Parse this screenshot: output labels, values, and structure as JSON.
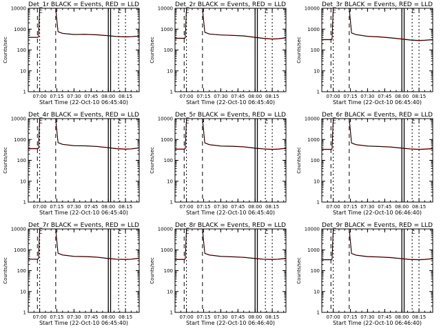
{
  "colors": {
    "background": "#ffffff",
    "axes": "#000000",
    "bkg_series": "#000000",
    "events_series": "#ff0000"
  },
  "chart_data": [
    {
      "type": "line",
      "title": "Det_1r BLACK = Events, RED = LLD",
      "xlabel": "Start Time (22-Oct-10 06:45:40)",
      "ylabel": "Counts/sec",
      "xlim": [
        "06:50",
        "08:27"
      ],
      "ylim": [
        1,
        10000
      ],
      "y_scale": "log",
      "x_ticks": [
        "07:00",
        "07:15",
        "07:30",
        "07:45",
        "08:00",
        "08:15"
      ],
      "y_ticks": [
        "1",
        "10",
        "100",
        "1000",
        "10000"
      ],
      "series": [
        {
          "name": "BLACK = Events",
          "color": "#000000",
          "x": [
            "06:50",
            "06:58",
            "06:59",
            "07:00",
            "07:14",
            "07:16",
            "07:20",
            "07:30",
            "07:40",
            "07:50",
            "08:00",
            "08:07",
            "08:15",
            "08:20",
            "08:27"
          ],
          "y": [
            400,
            400,
            420,
            10000,
            10000,
            750,
            620,
            550,
            560,
            530,
            480,
            440,
            420,
            430,
            460
          ]
        },
        {
          "name": "RED = LLD",
          "color": "#ff0000",
          "x": [
            "06:50",
            "06:58",
            "06:59",
            "07:00",
            "07:14",
            "07:16",
            "07:20",
            "07:30",
            "07:40",
            "07:50",
            "08:00",
            "08:07",
            "08:15",
            "08:20",
            "08:27"
          ],
          "y": [
            410,
            410,
            430,
            10000,
            10000,
            760,
            630,
            560,
            570,
            540,
            490,
            450,
            430,
            440,
            470
          ]
        }
      ],
      "markers": {
        "letters": [
          "C",
          "C"
        ]
      }
    },
    {
      "type": "line",
      "title": "Det_2r BLACK = Events, RED = LLD",
      "xlabel": "Start Time (22-Oct-10 06:45:40)",
      "ylabel": "Counts/sec",
      "xlim": [
        "06:50",
        "08:27"
      ],
      "ylim": [
        1,
        10000
      ],
      "y_scale": "log",
      "x_ticks": [
        "07:00",
        "07:15",
        "07:30",
        "07:45",
        "08:00",
        "08:15"
      ],
      "y_ticks": [
        "1",
        "10",
        "100",
        "1000",
        "10000"
      ],
      "series": [
        {
          "name": "BLACK = Events",
          "color": "#000000",
          "x": [
            "06:50",
            "06:58",
            "06:59",
            "07:00",
            "07:14",
            "07:16",
            "07:20",
            "07:30",
            "07:40",
            "07:50",
            "08:00",
            "08:07",
            "08:15",
            "08:20",
            "08:27"
          ],
          "y": [
            360,
            360,
            380,
            10000,
            10000,
            700,
            580,
            520,
            500,
            470,
            400,
            360,
            330,
            340,
            380
          ]
        },
        {
          "name": "RED = LLD",
          "color": "#ff0000",
          "x": [
            "06:50",
            "06:58",
            "06:59",
            "07:00",
            "07:14",
            "07:16",
            "07:20",
            "07:30",
            "07:40",
            "07:50",
            "08:00",
            "08:07",
            "08:15",
            "08:20",
            "08:27"
          ],
          "y": [
            370,
            370,
            390,
            10000,
            10000,
            710,
            590,
            530,
            510,
            480,
            410,
            370,
            340,
            350,
            390
          ]
        }
      ],
      "markers": {
        "letters": [
          "C",
          "C"
        ]
      }
    },
    {
      "type": "line",
      "title": "Det_3r BLACK = Events, RED = LLD",
      "xlabel": "Start Time (22-Oct-10 06:45:40)",
      "ylabel": "Counts/sec",
      "xlim": [
        "06:50",
        "08:27"
      ],
      "ylim": [
        1,
        10000
      ],
      "y_scale": "log",
      "x_ticks": [
        "07:00",
        "07:15",
        "07:30",
        "07:45",
        "08:00",
        "08:15"
      ],
      "y_ticks": [
        "1",
        "10",
        "100",
        "1000",
        "10000"
      ],
      "series": [
        {
          "name": "BLACK = Events",
          "color": "#000000",
          "x": [
            "06:50",
            "06:58",
            "06:59",
            "07:00",
            "07:14",
            "07:16",
            "07:20",
            "07:30",
            "07:40",
            "07:50",
            "08:00",
            "08:07",
            "08:15",
            "08:20",
            "08:27"
          ],
          "y": [
            310,
            310,
            330,
            10000,
            10000,
            650,
            540,
            450,
            420,
            380,
            330,
            300,
            280,
            290,
            310
          ]
        },
        {
          "name": "RED = LLD",
          "color": "#ff0000",
          "x": [
            "06:50",
            "06:58",
            "06:59",
            "07:00",
            "07:14",
            "07:16",
            "07:20",
            "07:30",
            "07:40",
            "07:50",
            "08:00",
            "08:07",
            "08:15",
            "08:20",
            "08:27"
          ],
          "y": [
            320,
            320,
            340,
            10000,
            10000,
            660,
            550,
            460,
            430,
            390,
            340,
            310,
            290,
            300,
            320
          ]
        }
      ],
      "markers": {
        "letters": [
          "C",
          "C"
        ]
      }
    },
    {
      "type": "line",
      "title": "Det_4r BLACK = Events, RED = LLD",
      "xlabel": "Start Time (22-Oct-10 06:45:40)",
      "ylabel": "Counts/sec",
      "xlim": [
        "06:50",
        "08:27"
      ],
      "ylim": [
        1,
        10000
      ],
      "y_scale": "log",
      "x_ticks": [
        "07:00",
        "07:15",
        "07:30",
        "07:45",
        "08:00",
        "08:15"
      ],
      "y_ticks": [
        "1",
        "10",
        "100",
        "1000",
        "10000"
      ],
      "series": [
        {
          "name": "BLACK = Events",
          "color": "#000000",
          "x": [
            "06:50",
            "06:58",
            "06:59",
            "07:00",
            "07:14",
            "07:16",
            "07:20",
            "07:30",
            "07:40",
            "07:50",
            "08:00",
            "08:07",
            "08:15",
            "08:20",
            "08:27"
          ],
          "y": [
            360,
            360,
            380,
            10000,
            10000,
            700,
            580,
            500,
            490,
            460,
            400,
            360,
            340,
            350,
            390
          ]
        },
        {
          "name": "RED = LLD",
          "color": "#ff0000",
          "x": [
            "06:50",
            "06:58",
            "06:59",
            "07:00",
            "07:14",
            "07:16",
            "07:20",
            "07:30",
            "07:40",
            "07:50",
            "08:00",
            "08:07",
            "08:15",
            "08:20",
            "08:27"
          ],
          "y": [
            370,
            370,
            390,
            10000,
            10000,
            710,
            590,
            510,
            500,
            470,
            410,
            370,
            350,
            360,
            400
          ]
        }
      ],
      "markers": {
        "letters": [
          "C",
          "C"
        ]
      }
    },
    {
      "type": "line",
      "title": "Det_5r BLACK = Events, RED = LLD",
      "xlabel": "Start Time (22-Oct-10 06:45:40)",
      "ylabel": "Counts/sec",
      "xlim": [
        "06:50",
        "08:27"
      ],
      "ylim": [
        1,
        10000
      ],
      "y_scale": "log",
      "x_ticks": [
        "07:00",
        "07:15",
        "07:30",
        "07:45",
        "08:00",
        "08:15"
      ],
      "y_ticks": [
        "1",
        "10",
        "100",
        "1000",
        "10000"
      ],
      "series": [
        {
          "name": "BLACK = Events",
          "color": "#000000",
          "x": [
            "06:50",
            "06:58",
            "06:59",
            "07:00",
            "07:14",
            "07:16",
            "07:20",
            "07:30",
            "07:40",
            "07:50",
            "08:00",
            "08:07",
            "08:15",
            "08:20",
            "08:27"
          ],
          "y": [
            340,
            340,
            360,
            10000,
            10000,
            680,
            560,
            480,
            470,
            440,
            380,
            350,
            330,
            340,
            370
          ]
        },
        {
          "name": "RED = LLD",
          "color": "#ff0000",
          "x": [
            "06:50",
            "06:58",
            "06:59",
            "07:00",
            "07:14",
            "07:16",
            "07:20",
            "07:30",
            "07:40",
            "07:50",
            "08:00",
            "08:07",
            "08:15",
            "08:20",
            "08:27"
          ],
          "y": [
            350,
            350,
            370,
            10000,
            10000,
            690,
            570,
            490,
            480,
            450,
            390,
            360,
            340,
            350,
            380
          ]
        }
      ],
      "markers": {
        "letters": [
          "C",
          "C"
        ]
      }
    },
    {
      "type": "line",
      "title": "Det_6r BLACK = Events, RED = LLD",
      "xlabel": "Start Time (22-Oct-10 06:46:40)",
      "ylabel": "Counts/sec",
      "xlim": [
        "06:50",
        "08:27"
      ],
      "ylim": [
        1,
        10000
      ],
      "y_scale": "log",
      "x_ticks": [
        "07:00",
        "07:15",
        "07:30",
        "07:45",
        "08:00",
        "08:15"
      ],
      "y_ticks": [
        "1",
        "10",
        "100",
        "1000",
        "10000"
      ],
      "series": [
        {
          "name": "BLACK = Events",
          "color": "#000000",
          "x": [
            "06:50",
            "06:58",
            "06:59",
            "07:00",
            "07:14",
            "07:16",
            "07:20",
            "07:30",
            "07:40",
            "07:50",
            "08:00",
            "08:07",
            "08:15",
            "08:20",
            "08:27"
          ],
          "y": [
            330,
            330,
            350,
            10000,
            10000,
            670,
            560,
            480,
            460,
            430,
            380,
            350,
            330,
            340,
            360
          ]
        },
        {
          "name": "RED = LLD",
          "color": "#ff0000",
          "x": [
            "06:50",
            "06:58",
            "06:59",
            "07:00",
            "07:14",
            "07:16",
            "07:20",
            "07:30",
            "07:40",
            "07:50",
            "08:00",
            "08:07",
            "08:15",
            "08:20",
            "08:27"
          ],
          "y": [
            340,
            340,
            360,
            10000,
            10000,
            680,
            570,
            490,
            470,
            440,
            390,
            360,
            340,
            350,
            370
          ]
        }
      ],
      "markers": {
        "letters": [
          "C",
          "C"
        ]
      }
    },
    {
      "type": "line",
      "title": "Det_7r BLACK = Events, RED = LLD",
      "xlabel": "Start Time (22-Oct-10 06:45:40)",
      "ylabel": "Counts/sec",
      "xlim": [
        "06:50",
        "08:27"
      ],
      "ylim": [
        1,
        10000
      ],
      "y_scale": "log",
      "x_ticks": [
        "07:00",
        "07:15",
        "07:30",
        "07:45",
        "08:00",
        "08:15"
      ],
      "y_ticks": [
        "1",
        "10",
        "100",
        "1000",
        "10000"
      ],
      "series": [
        {
          "name": "BLACK = Events",
          "color": "#000000",
          "x": [
            "06:50",
            "06:58",
            "06:59",
            "07:00",
            "07:14",
            "07:16",
            "07:20",
            "07:30",
            "07:40",
            "07:50",
            "08:00",
            "08:07",
            "08:15",
            "08:20",
            "08:27"
          ],
          "y": [
            350,
            350,
            370,
            10000,
            10000,
            680,
            560,
            480,
            470,
            440,
            380,
            350,
            340,
            350,
            390
          ]
        },
        {
          "name": "RED = LLD",
          "color": "#ff0000",
          "x": [
            "06:50",
            "06:58",
            "06:59",
            "07:00",
            "07:14",
            "07:16",
            "07:20",
            "07:30",
            "07:40",
            "07:50",
            "08:00",
            "08:07",
            "08:15",
            "08:20",
            "08:27"
          ],
          "y": [
            360,
            360,
            380,
            10000,
            10000,
            690,
            570,
            490,
            480,
            450,
            390,
            360,
            350,
            360,
            400
          ]
        }
      ],
      "markers": {
        "letters": [
          "C",
          "C"
        ]
      }
    },
    {
      "type": "line",
      "title": "Det_8r BLACK = Events, RED = LLD",
      "xlabel": "Start Time (22-Oct-10 06:46:40)",
      "ylabel": "Counts/sec",
      "xlim": [
        "06:50",
        "08:27"
      ],
      "ylim": [
        1,
        10000
      ],
      "y_scale": "log",
      "x_ticks": [
        "07:00",
        "07:15",
        "07:30",
        "07:45",
        "08:00",
        "08:15"
      ],
      "y_ticks": [
        "1",
        "10",
        "100",
        "1000",
        "10000"
      ],
      "series": [
        {
          "name": "BLACK = Events",
          "color": "#000000",
          "x": [
            "06:50",
            "06:58",
            "06:59",
            "07:00",
            "07:14",
            "07:16",
            "07:20",
            "07:30",
            "07:40",
            "07:50",
            "08:00",
            "08:07",
            "08:15",
            "08:20",
            "08:27"
          ],
          "y": [
            340,
            340,
            360,
            10000,
            10000,
            670,
            560,
            480,
            460,
            430,
            380,
            350,
            340,
            350,
            380
          ]
        },
        {
          "name": "RED = LLD",
          "color": "#ff0000",
          "x": [
            "06:50",
            "06:58",
            "06:59",
            "07:00",
            "07:14",
            "07:16",
            "07:20",
            "07:30",
            "07:40",
            "07:50",
            "08:00",
            "08:07",
            "08:15",
            "08:20",
            "08:27"
          ],
          "y": [
            350,
            350,
            370,
            10000,
            10000,
            680,
            570,
            490,
            470,
            440,
            390,
            360,
            350,
            360,
            390
          ]
        }
      ],
      "markers": {
        "letters": [
          "C",
          "C"
        ]
      }
    },
    {
      "type": "line",
      "title": "Det_9r BLACK = Events, RED = LLD",
      "xlabel": "Start Time (22-Oct-10 06:46:40)",
      "ylabel": "Counts/sec",
      "xlim": [
        "06:50",
        "08:27"
      ],
      "ylim": [
        1,
        10000
      ],
      "y_scale": "log",
      "x_ticks": [
        "07:00",
        "07:15",
        "07:30",
        "07:45",
        "08:00",
        "08:15"
      ],
      "y_ticks": [
        "1",
        "10",
        "100",
        "1000",
        "10000"
      ],
      "series": [
        {
          "name": "BLACK = Events",
          "color": "#000000",
          "x": [
            "06:50",
            "06:58",
            "06:59",
            "07:00",
            "07:14",
            "07:16",
            "07:20",
            "07:30",
            "07:40",
            "07:50",
            "08:00",
            "08:07",
            "08:15",
            "08:20",
            "08:27"
          ],
          "y": [
            330,
            330,
            350,
            10000,
            10000,
            660,
            550,
            470,
            450,
            420,
            370,
            340,
            330,
            340,
            370
          ]
        },
        {
          "name": "RED = LLD",
          "color": "#ff0000",
          "x": [
            "06:50",
            "06:58",
            "06:59",
            "07:00",
            "07:14",
            "07:16",
            "07:20",
            "07:30",
            "07:40",
            "07:50",
            "08:00",
            "08:07",
            "08:15",
            "08:20",
            "08:27"
          ],
          "y": [
            340,
            340,
            360,
            10000,
            10000,
            670,
            560,
            480,
            460,
            430,
            380,
            350,
            340,
            350,
            380
          ]
        }
      ],
      "markers": {
        "letters": [
          "C",
          "C"
        ]
      }
    }
  ]
}
